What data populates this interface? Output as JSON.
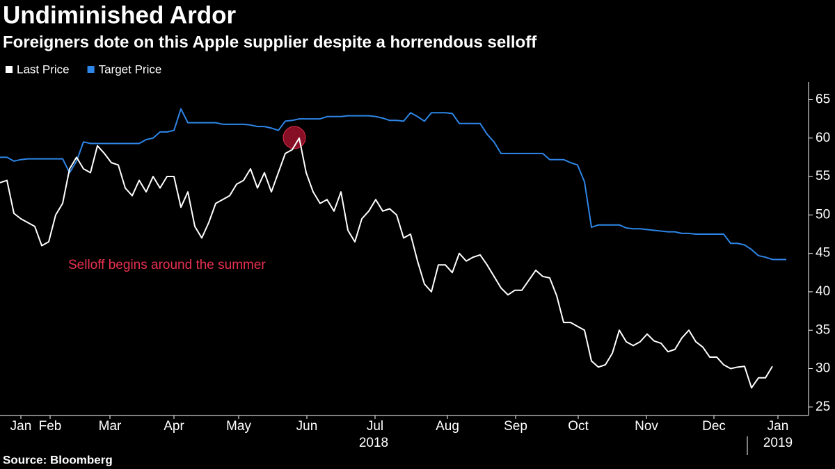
{
  "chart_data": {
    "type": "line",
    "title": "Undiminished Ardor",
    "subtitle": "Foreigners dote on this Apple supplier despite a horrendous selloff",
    "source": "Source: Bloomberg",
    "annotation": "Selloff begins around the summer",
    "series": [
      {
        "name": "Last Price",
        "color": "#ffffff",
        "values": [
          54.2,
          54.5,
          50.2,
          49.5,
          49,
          48.5,
          46,
          46.5,
          50,
          51.5,
          56,
          57.5,
          56,
          55.5,
          59,
          58,
          56.8,
          56.5,
          53.5,
          52.5,
          54.5,
          53,
          55,
          53.5,
          55,
          55,
          51,
          53,
          48.5,
          47,
          49,
          51.5,
          52,
          52.5,
          54,
          54.5,
          56,
          53.5,
          55.5,
          53,
          55.5,
          58,
          58.5,
          60,
          55.5,
          53,
          51.5,
          52,
          50.5,
          53,
          48,
          46.5,
          49.5,
          50.5,
          52,
          50.5,
          50.8,
          50,
          47,
          47.5,
          44,
          41,
          40,
          43.5,
          43.5,
          42.5,
          45,
          44,
          44.5,
          44.8,
          43.5,
          42,
          40.5,
          39.6,
          40.2,
          40.2,
          41.5,
          42.8,
          42,
          41.8,
          39.5,
          36,
          36,
          35.5,
          35,
          31,
          30.2,
          30.5,
          32,
          35,
          33.5,
          33,
          33.5,
          34.5,
          33.6,
          33.3,
          32.2,
          32.5,
          34,
          35,
          33.5,
          32.8,
          31.5,
          31.5,
          30.5,
          30,
          30.2,
          30.3,
          27.5,
          28.8,
          28.8,
          30.3,
          null,
          null
        ]
      },
      {
        "name": "Target Price",
        "color": "#2e86e8",
        "values": [
          57.5,
          57.5,
          57,
          57.2,
          57.3,
          57.3,
          57.3,
          57.3,
          57.3,
          57.3,
          55.5,
          57,
          59.5,
          59.3,
          59.3,
          59.3,
          59.3,
          59.3,
          59.3,
          59.3,
          59.3,
          59.8,
          60,
          60.8,
          60.8,
          61,
          63.8,
          62,
          62,
          62,
          62,
          62,
          61.8,
          61.8,
          61.8,
          61.8,
          61.7,
          61.5,
          61.5,
          61.3,
          61,
          62.2,
          62.3,
          62.5,
          62.5,
          62.5,
          62.5,
          62.8,
          62.8,
          62.8,
          62.9,
          62.9,
          62.9,
          62.9,
          62.8,
          62.6,
          62.3,
          62.3,
          62.2,
          63.3,
          62.8,
          62.2,
          63.3,
          63.3,
          63.3,
          63.2,
          61.9,
          61.9,
          61.9,
          61.9,
          60.5,
          59.5,
          58,
          58,
          58,
          58,
          58,
          58,
          58,
          57.2,
          57.2,
          57.2,
          56.8,
          56.5,
          54.3,
          48.4,
          48.7,
          48.7,
          48.7,
          48.7,
          48.3,
          48.2,
          48.2,
          48.1,
          48,
          47.9,
          47.8,
          47.8,
          47.6,
          47.6,
          47.5,
          47.5,
          47.5,
          47.5,
          47.5,
          46.3,
          46.3,
          46.1,
          45.5,
          44.7,
          44.5,
          44.2,
          44.2,
          44.2
        ]
      }
    ],
    "xlim": [
      0,
      116
    ],
    "xticks": [
      {
        "value": 3,
        "label": "Jan"
      },
      {
        "value": 7.2,
        "label": "Feb"
      },
      {
        "value": 15.8,
        "label": "Mar"
      },
      {
        "value": 25,
        "label": "Apr"
      },
      {
        "value": 34.3,
        "label": "May"
      },
      {
        "value": 44.1,
        "label": "Jun"
      },
      {
        "value": 53.9,
        "label": "Jul"
      },
      {
        "value": 64.3,
        "label": "Aug"
      },
      {
        "value": 74.1,
        "label": "Sep"
      },
      {
        "value": 83.1,
        "label": "Oct"
      },
      {
        "value": 92.9,
        "label": "Nov"
      },
      {
        "value": 102.6,
        "label": "Dec"
      },
      {
        "value": 111.8,
        "label": "Jan"
      }
    ],
    "xyears": [
      {
        "value": 53.7,
        "label": "2018"
      },
      {
        "value": 111.8,
        "label": "2019"
      }
    ],
    "ylim": [
      23.9,
      67.3
    ],
    "yticks": [
      25,
      30,
      35,
      40,
      45,
      50,
      55,
      60,
      65
    ]
  }
}
